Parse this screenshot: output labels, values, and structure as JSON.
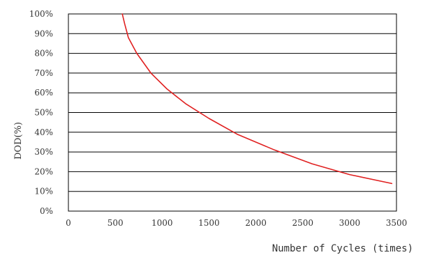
{
  "chart_data": {
    "type": "line",
    "title": "",
    "xlabel": "Number of Cycles (times)",
    "ylabel": "DOD(%)",
    "xlim": [
      0,
      3500
    ],
    "ylim": [
      0,
      100
    ],
    "grid": true,
    "x_ticks": [
      "0",
      "500",
      "1000",
      "1500",
      "2000",
      "2500",
      "3000",
      "3500"
    ],
    "y_ticks": [
      "0%",
      "10%",
      "20%",
      "30%",
      "40%",
      "50%",
      "60%",
      "70%",
      "80%",
      "90%",
      "100%"
    ],
    "series": [
      {
        "color": "#e02020",
        "x": [
          575,
          600,
          640,
          730,
          880,
          1050,
          1250,
          1500,
          1800,
          2200,
          2600,
          3000,
          3450
        ],
        "y": [
          100,
          95,
          88,
          80,
          70,
          62,
          54.5,
          47,
          39,
          31,
          24,
          18.5,
          14
        ]
      }
    ]
  }
}
